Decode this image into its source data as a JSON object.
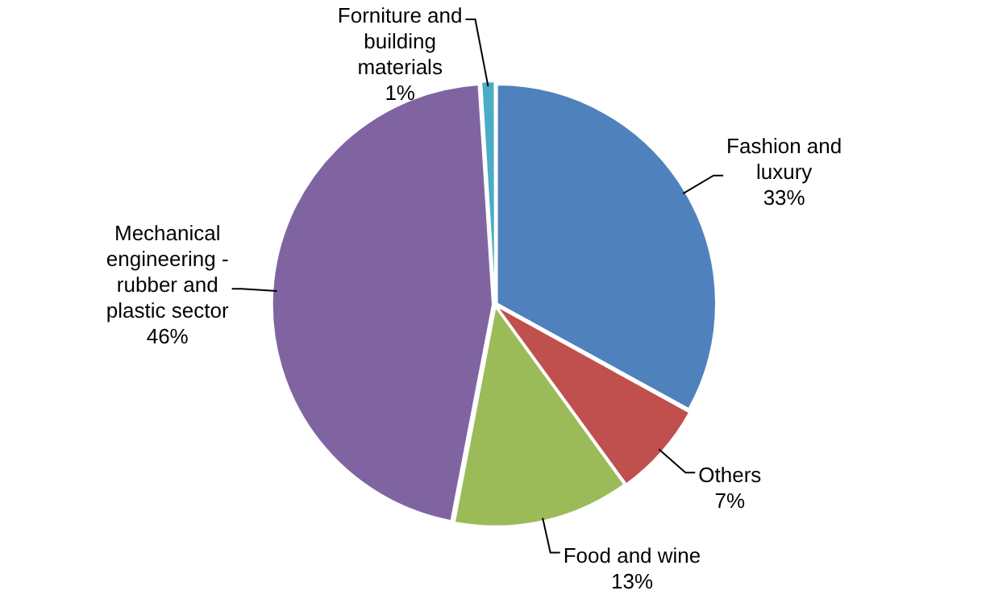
{
  "chart_data": {
    "type": "pie",
    "categories": [
      "Fashion and luxury",
      "Others",
      "Food and wine",
      "Mechanical engineering - rubber and plastic sector",
      "Forniture and building materials"
    ],
    "values": [
      33,
      7,
      13,
      46,
      1
    ],
    "colors": [
      "#4f81bd",
      "#c0504d",
      "#9bbb59",
      "#8064a2",
      "#4bacc6"
    ],
    "value_labels": [
      "33%",
      "7%",
      "13%",
      "46%",
      "1%"
    ],
    "legend": false
  }
}
